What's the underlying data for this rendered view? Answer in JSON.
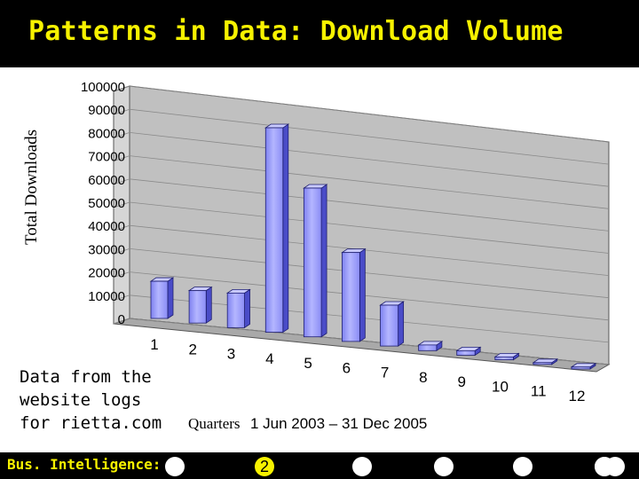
{
  "slide": {
    "title": "Patterns in Data: Download Volume",
    "note": "Data from the\nwebsite logs\nfor rietta.com"
  },
  "footer": {
    "label": "Bus. Intelligence:",
    "nav": [
      "",
      "2",
      "",
      "",
      "",
      "",
      "",
      ""
    ],
    "active_index": 1
  },
  "colors": {
    "title_bar": "#000000",
    "title_text": "#f7f200",
    "bar_front": "#9a9cff",
    "bar_side": "#4a4cc8",
    "plot_wall": "#c0c0c0"
  },
  "chart_data": {
    "type": "bar",
    "categories": [
      "1",
      "2",
      "3",
      "4",
      "5",
      "6",
      "7",
      "8",
      "9",
      "10",
      "11",
      "12"
    ],
    "values": [
      16000,
      14000,
      15000,
      89000,
      65000,
      39000,
      18000,
      2500,
      2000,
      1300,
      800,
      900
    ],
    "ylabel": "Total Downloads",
    "xlabel_prefix": "Quarters",
    "xlabel_rest": "1 Jun 2003 – 31 Dec 2005",
    "y_ticks": [
      0,
      10000,
      20000,
      30000,
      40000,
      50000,
      60000,
      70000,
      80000,
      90000,
      100000
    ],
    "ylim": [
      0,
      100000
    ],
    "grid": true,
    "legend": "none",
    "style": "3d-perspective"
  }
}
